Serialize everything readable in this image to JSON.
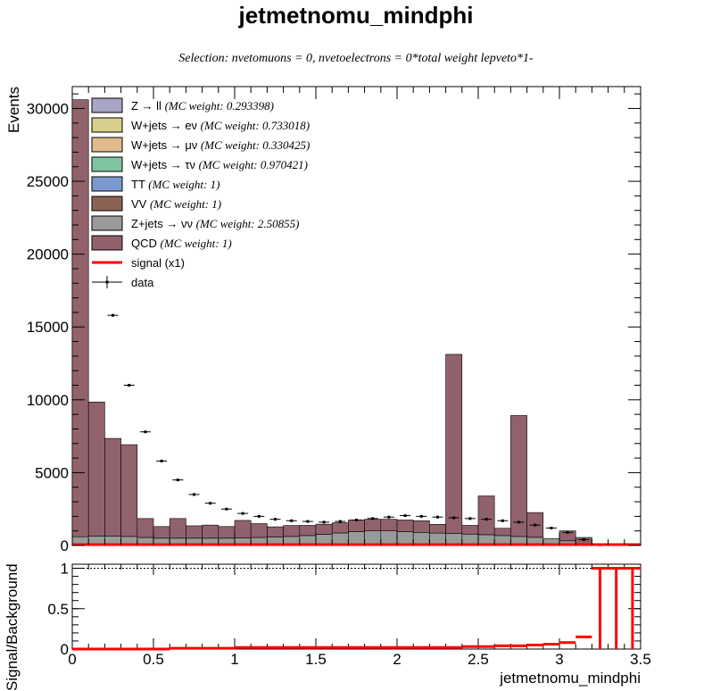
{
  "title": "jetmetnomu_mindphi",
  "subtitle": "Selection: nvetomuons = 0, nvetoelectrons = 0*total weight lepveto*1-",
  "chart_data": [
    {
      "type": "bar",
      "subtype": "stacked-histogram",
      "ylabel": "Events",
      "ylim": [
        0,
        31500
      ],
      "xlim": [
        0,
        3.5
      ],
      "bin_width": 0.1,
      "x_tick_labels": [
        "0",
        "0.5",
        "1",
        "1.5",
        "2",
        "2.5",
        "3",
        "3.5"
      ],
      "y_tick_labels": [
        "0",
        "5000",
        "10000",
        "15000",
        "20000",
        "25000",
        "30000"
      ],
      "y_ticks": [
        0,
        5000,
        10000,
        15000,
        20000,
        25000,
        30000
      ],
      "legend_position": "top-left",
      "legend": [
        {
          "label": "Z → ll",
          "note": "(MC weight: 0.293398)",
          "color": "#a8a6c4"
        },
        {
          "label": "W+jets → eν",
          "note": "(MC weight: 0.733018)",
          "color": "#d6cf8c"
        },
        {
          "label": "W+jets → μν",
          "note": "(MC weight: 0.330425)",
          "color": "#e0bc8c"
        },
        {
          "label": "W+jets → τν",
          "note": "(MC weight: 0.970421)",
          "color": "#7fc4a0"
        },
        {
          "label": "TT",
          "note": "(MC weight: 1)",
          "color": "#7b98d0"
        },
        {
          "label": "VV",
          "note": "(MC weight: 1)",
          "color": "#8c6252"
        },
        {
          "label": "Z+jets → νν",
          "note": "(MC weight: 2.50855)",
          "color": "#9a9a9a"
        },
        {
          "label": "QCD",
          "note": "(MC weight: 1)",
          "color": "#91626c"
        },
        {
          "label": "signal (x1)",
          "note": "",
          "color": "#ff0000"
        },
        {
          "label": "data",
          "note": "",
          "color": "#000000"
        }
      ],
      "bin_centers": [
        0.05,
        0.15,
        0.25,
        0.35,
        0.45,
        0.55,
        0.65,
        0.75,
        0.85,
        0.95,
        1.05,
        1.15,
        1.25,
        1.35,
        1.45,
        1.55,
        1.65,
        1.75,
        1.85,
        1.95,
        2.05,
        2.15,
        2.25,
        2.35,
        2.45,
        2.55,
        2.65,
        2.75,
        2.85,
        2.95,
        3.05,
        3.15,
        3.25,
        3.35,
        3.45
      ],
      "series": [
        {
          "name": "Z+jets → νν",
          "values": [
            600,
            650,
            650,
            620,
            550,
            500,
            500,
            500,
            500,
            500,
            520,
            550,
            580,
            620,
            680,
            760,
            860,
            950,
            1000,
            1000,
            950,
            900,
            850,
            820,
            780,
            740,
            680,
            620,
            560,
            480,
            320,
            100,
            10,
            5,
            0
          ]
        },
        {
          "name": "QCD",
          "values": [
            30000,
            9200,
            6700,
            6300,
            1300,
            800,
            1350,
            850,
            900,
            800,
            1200,
            950,
            700,
            750,
            700,
            700,
            700,
            800,
            800,
            800,
            800,
            800,
            600,
            12300,
            600,
            2660,
            500,
            8300,
            1700,
            0,
            680,
            450,
            5,
            0,
            0
          ]
        },
        {
          "name": "data",
          "values": [
            null,
            null,
            15800,
            11000,
            7800,
            5800,
            4500,
            3500,
            2900,
            2500,
            2200,
            2000,
            1800,
            1700,
            1650,
            1600,
            1650,
            1750,
            1850,
            1950,
            2050,
            2000,
            1950,
            1900,
            1850,
            1800,
            1700,
            1600,
            1400,
            1200,
            900,
            400,
            50,
            0,
            0
          ]
        }
      ]
    },
    {
      "type": "line",
      "subtype": "step",
      "ylabel": "Signal/Background",
      "xlabel": "jetmetnomu_mindphi",
      "ylim": [
        0,
        1.05
      ],
      "xlim": [
        0,
        3.5
      ],
      "x_tick_labels": [
        "0",
        "0.5",
        "1",
        "1.5",
        "2",
        "2.5",
        "3",
        "3.5"
      ],
      "y_tick_labels": [
        "0",
        "0.5",
        "1"
      ],
      "y_ticks": [
        0,
        0.5,
        1
      ],
      "reference_line": 1,
      "series": [
        {
          "name": "signal (x1)",
          "values": [
            0,
            0,
            0,
            0,
            0,
            0,
            0.01,
            0.01,
            0.01,
            0.01,
            0.02,
            0.02,
            0.02,
            0.02,
            0.02,
            0.02,
            0.02,
            0.02,
            0.02,
            0.02,
            0.02,
            0.02,
            0.02,
            0.02,
            0.03,
            0.03,
            0.04,
            0.04,
            0.05,
            0.06,
            0.08,
            0.15,
            1,
            1,
            1
          ]
        }
      ]
    }
  ]
}
